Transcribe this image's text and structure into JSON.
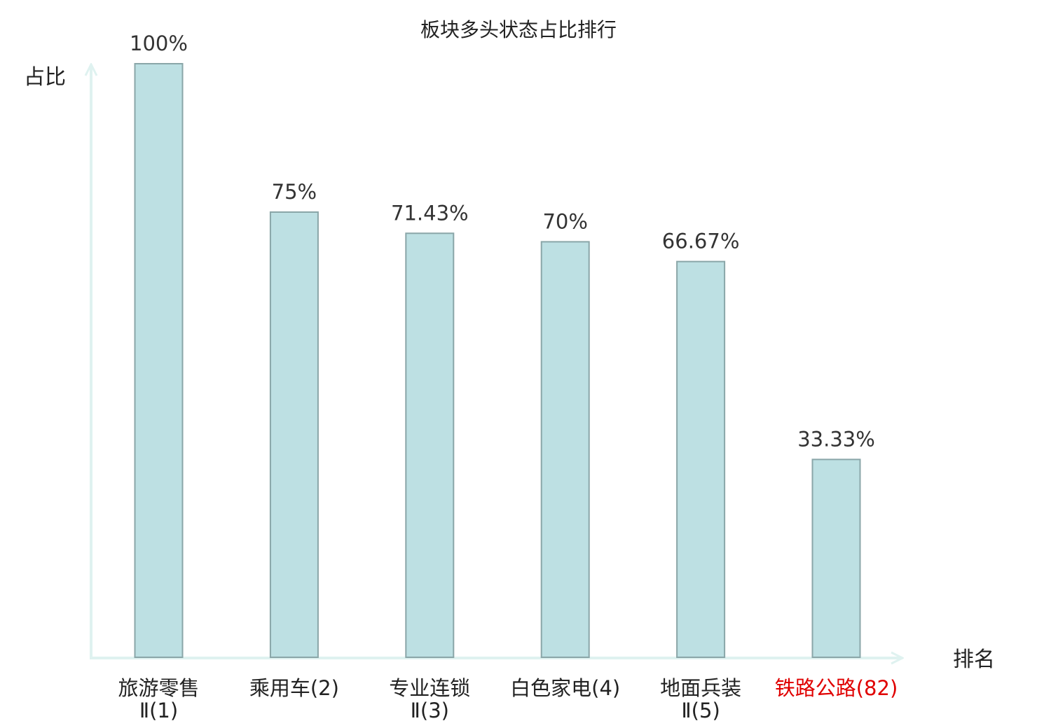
{
  "chart_data": {
    "type": "bar",
    "title": "板块多头状态占比排行",
    "ylabel": "占比",
    "xlabel": "排名",
    "ylim": [
      0,
      100
    ],
    "grid": false,
    "categories": [
      [
        "旅游零售",
        "Ⅱ(1)"
      ],
      [
        "乘用车(2)"
      ],
      [
        "专业连锁",
        "Ⅱ(3)"
      ],
      [
        "白色家电(4)"
      ],
      [
        "地面兵装",
        "Ⅱ(5)"
      ],
      [
        "铁路公路(82)"
      ]
    ],
    "values": [
      100,
      75,
      71.43,
      70,
      66.67,
      33.33
    ],
    "data_labels": [
      "100%",
      "75%",
      "71.43%",
      "70%",
      "66.67%",
      "33.33%"
    ],
    "highlight_index": 5
  },
  "colors": {
    "bar_fill": "#bde0e3",
    "bar_stroke": "#8aa6a8",
    "axis": "#dff2f0",
    "text": "#222222",
    "highlight_text": "#e00000"
  }
}
